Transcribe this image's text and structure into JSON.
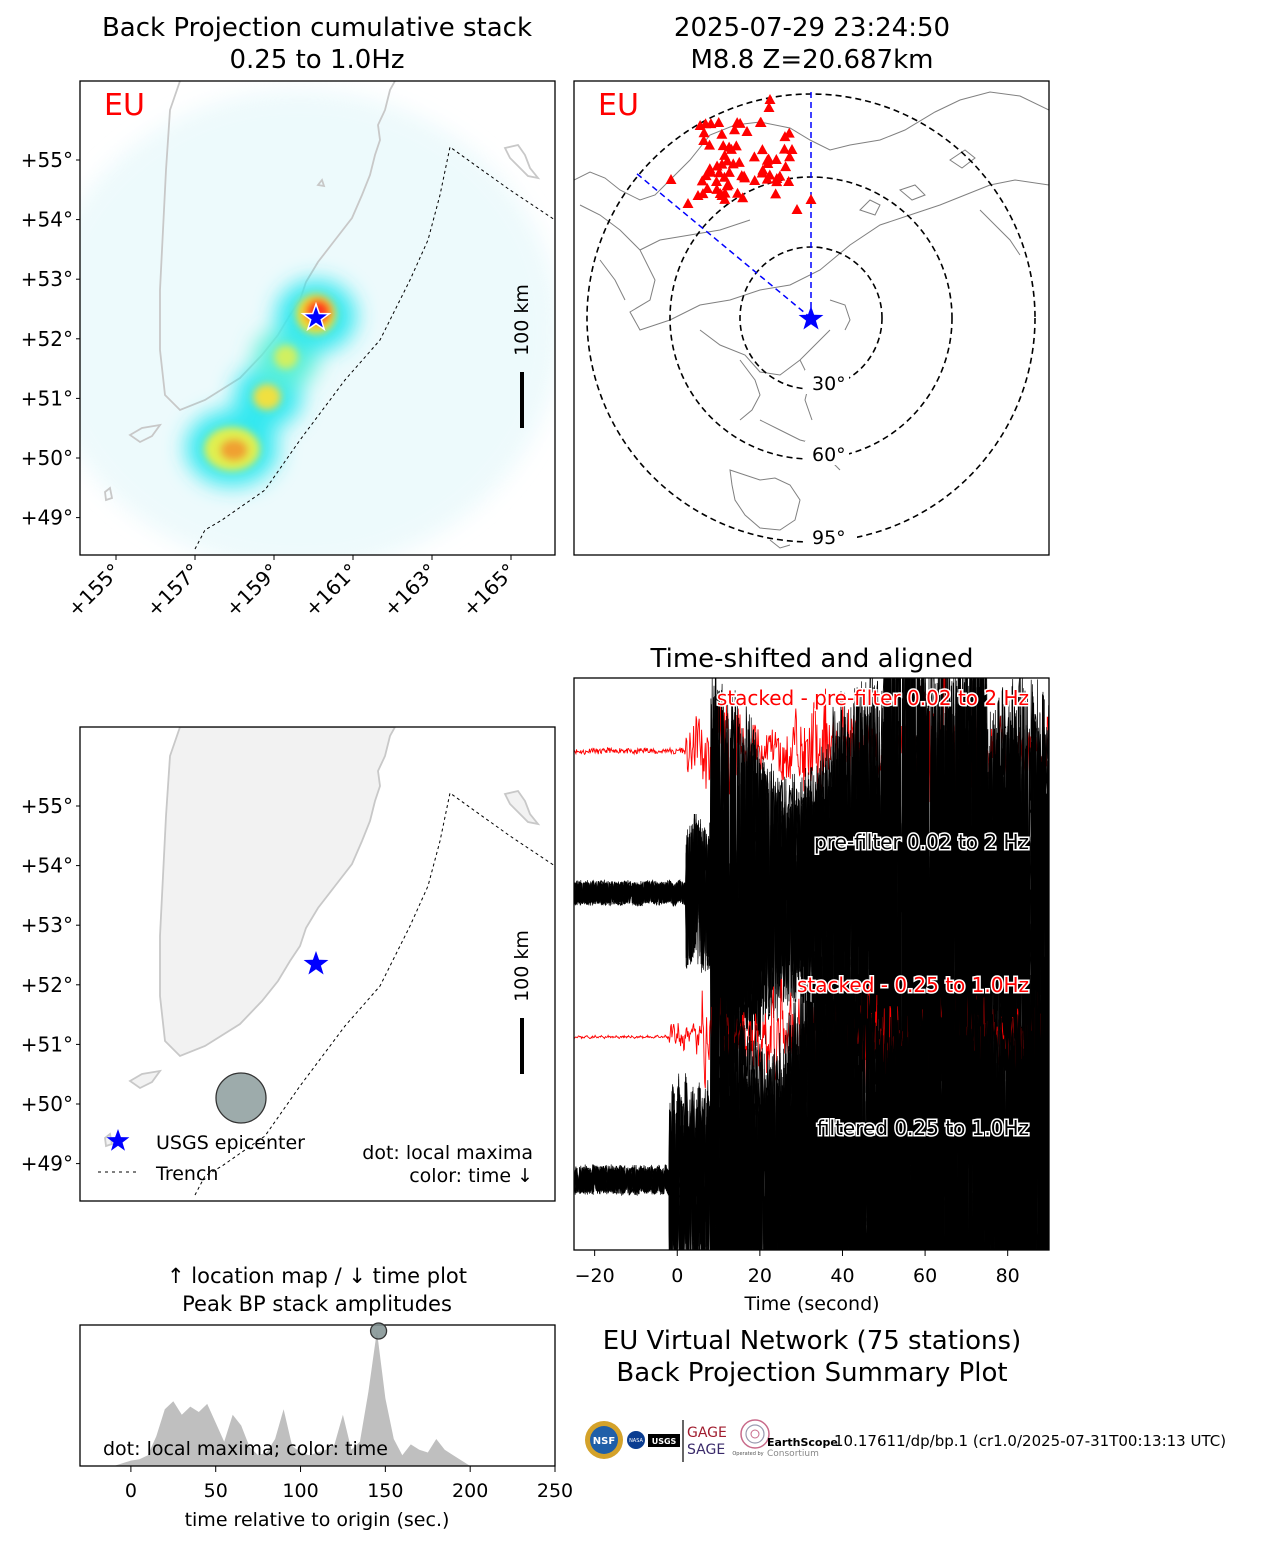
{
  "colors": {
    "land": "#f2f2f2",
    "coast": "#c8c8c8",
    "station": "#ff0000",
    "epicenter": "#0000ff",
    "stack": "#ff0000",
    "trace": "#000000",
    "peak_fill": "#bfbfbf",
    "maxima": "#7f8f8f"
  },
  "panels": {
    "bp_map": {
      "title_line1": "Back Projection cumulative stack",
      "title_line2": "0.25 to 1.0Hz",
      "network_label": "EU",
      "scale_label": "100 km",
      "lat_ticks": [
        "+55°",
        "+54°",
        "+53°",
        "+52°",
        "+51°",
        "+50°",
        "+49°"
      ],
      "lon_ticks": [
        "+155°",
        "+157°",
        "+159°",
        "+161°",
        "+163°",
        "+165°"
      ]
    },
    "station_map": {
      "title_line1": "2025-07-29 23:24:50",
      "title_line2": "M8.8 Z=20.687km",
      "network_label": "EU",
      "ring_labels": [
        "30°",
        "60°",
        "95°"
      ]
    },
    "location_map": {
      "scale_label": "100 km",
      "lat_ticks": [
        "+55°",
        "+54°",
        "+53°",
        "+52°",
        "+51°",
        "+50°",
        "+49°"
      ],
      "legend": {
        "epicenter": "USGS epicenter",
        "trench": "Trench"
      },
      "note_line1": "dot: local maxima",
      "note_line2": "color: time ↓"
    },
    "peak_plot": {
      "title_line1": "↑ location map / ↓ time plot",
      "title_line2": "Peak BP stack amplitudes",
      "note": "dot: local maxima; color: time"
    },
    "summary": {
      "line1": "EU Virtual Network (75 stations)",
      "line2": "Back Projection Summary Plot",
      "credit": "10.17611/dp/bp.1 (cr1.0/2025-07-31T00:13:13 UTC)",
      "logos": [
        "NSF",
        "NASA",
        "USGS",
        "GAGE",
        "SAGE",
        "EarthScope",
        "Consortium",
        "Operated by"
      ]
    }
  },
  "chart_data": [
    {
      "type": "heatmap",
      "title": "Back Projection cumulative stack",
      "subtitle": "0.25 to 1.0Hz",
      "xlim": [
        154.0,
        166.0
      ],
      "ylim": [
        48.4,
        56.4
      ],
      "x_ticks": [
        155,
        157,
        159,
        161,
        163,
        165
      ],
      "y_ticks": [
        49,
        50,
        51,
        52,
        53,
        54,
        55
      ],
      "hotspots": [
        {
          "lon": 159.9,
          "lat": 52.3,
          "intensity": 1.0
        },
        {
          "lon": 159.2,
          "lat": 51.7,
          "intensity": 0.55
        },
        {
          "lon": 158.5,
          "lat": 51.0,
          "intensity": 0.65
        },
        {
          "lon": 157.8,
          "lat": 50.1,
          "intensity": 0.9
        }
      ],
      "epicenter": {
        "lon": 160.0,
        "lat": 52.3
      },
      "trench": [
        [
          157.0,
          48.4
        ],
        [
          157.4,
          48.9
        ],
        [
          158.0,
          49.2
        ],
        [
          159.5,
          50.4
        ],
        [
          160.5,
          51.5
        ],
        [
          161.5,
          52.2
        ],
        [
          162.2,
          53.2
        ],
        [
          162.7,
          54.3
        ],
        [
          163.3,
          55.2
        ],
        [
          165.0,
          54.6
        ],
        [
          166.0,
          54.0
        ]
      ]
    },
    {
      "type": "line",
      "title": "Time-shifted and aligned",
      "xlabel": "Time (second)",
      "xlim": [
        -25,
        90
      ],
      "x_ticks": [
        -20,
        0,
        20,
        40,
        60,
        80
      ],
      "series": [
        {
          "name": "stacked - pre-filter 0.02 to 2 Hz",
          "kind": "stack"
        },
        {
          "name": "pre-filter 0.02 to 2 Hz",
          "kind": "traces"
        },
        {
          "name": "stacked - 0.25 to 1.0Hz",
          "kind": "stack"
        },
        {
          "name": "filtered 0.25 to 1.0Hz",
          "kind": "traces"
        }
      ]
    },
    {
      "type": "area",
      "xlabel": "time relative to origin (sec.)",
      "xlim": [
        -30,
        250
      ],
      "x_ticks": [
        0,
        50,
        100,
        150,
        200,
        250
      ],
      "x": [
        -30,
        -20,
        -10,
        -5,
        0,
        5,
        10,
        15,
        20,
        25,
        30,
        35,
        40,
        45,
        50,
        55,
        60,
        65,
        70,
        75,
        80,
        85,
        90,
        95,
        100,
        105,
        110,
        115,
        120,
        125,
        130,
        135,
        140,
        145,
        150,
        155,
        160,
        165,
        170,
        175,
        180,
        185,
        190,
        195,
        200,
        210,
        220,
        250
      ],
      "values": [
        0,
        0,
        0,
        0.02,
        0.04,
        0.05,
        0.08,
        0.22,
        0.42,
        0.48,
        0.38,
        0.44,
        0.4,
        0.46,
        0.32,
        0.18,
        0.38,
        0.3,
        0.14,
        0.08,
        0.1,
        0.2,
        0.42,
        0.15,
        0.1,
        0.08,
        0.1,
        0.12,
        0.16,
        0.38,
        0.12,
        0.18,
        0.55,
        1.0,
        0.5,
        0.2,
        0.08,
        0.16,
        0.12,
        0.1,
        0.2,
        0.12,
        0.08,
        0.04,
        0.0,
        0.0,
        0.0,
        0.0
      ],
      "maxima": [
        {
          "x": 146,
          "y": 1.0
        }
      ]
    }
  ]
}
